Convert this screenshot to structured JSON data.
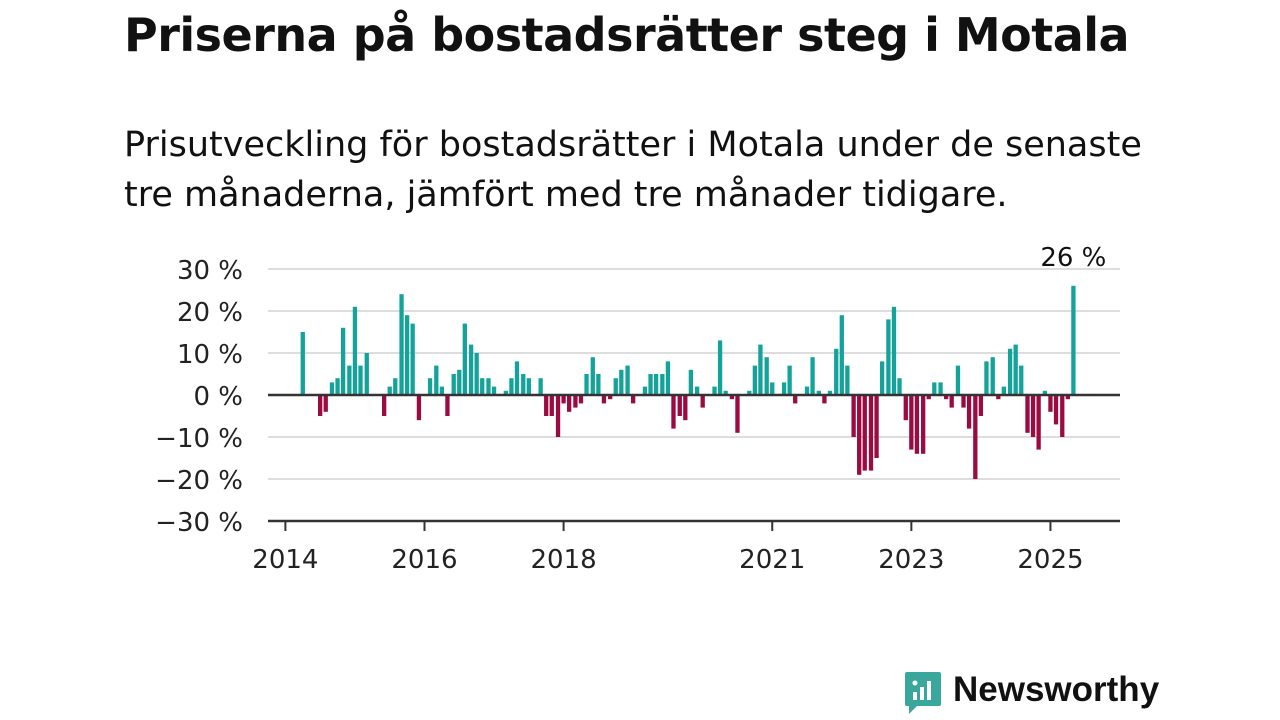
{
  "brand": {
    "name": "Newsworthy",
    "color": "#3aa79c"
  },
  "chart_data": {
    "type": "bar",
    "title": "Priserna på bostadsrätter steg i Motala",
    "subtitle": "Prisutveckling för bostadsrätter i Motala under de senaste tre månaderna, jämfört med tre månader tidigare.",
    "xlabel": "",
    "ylabel": "",
    "ylim": [
      -30,
      30
    ],
    "y_ticks": [
      30,
      20,
      10,
      0,
      -10,
      -20,
      -30
    ],
    "y_tick_labels": [
      "30 %",
      "20 %",
      "10 %",
      "0 %",
      "−10 %",
      "−20 %",
      "−30 %"
    ],
    "x_ticks": [
      2014,
      2016,
      2018,
      2021,
      2023,
      2025
    ],
    "x_tick_labels": [
      "2014",
      "2016",
      "2018",
      "2021",
      "2023",
      "2025"
    ],
    "x_range": [
      2013.75,
      2026.0
    ],
    "grid": true,
    "colors": {
      "positive": "#14a39a",
      "negative": "#9b0b42",
      "grid": "#dddddd",
      "axis": "#333333"
    },
    "annotation": {
      "x": 2025.33,
      "value": 26,
      "label": "26 %"
    },
    "x": [
      2014.25,
      2014.33,
      2014.42,
      2014.5,
      2014.58,
      2014.67,
      2014.75,
      2014.83,
      2014.92,
      2015.0,
      2015.08,
      2015.17,
      2015.25,
      2015.33,
      2015.42,
      2015.5,
      2015.58,
      2015.67,
      2015.75,
      2015.83,
      2015.92,
      2016.0,
      2016.08,
      2016.17,
      2016.25,
      2016.33,
      2016.42,
      2016.5,
      2016.58,
      2016.67,
      2016.75,
      2016.83,
      2016.92,
      2017.0,
      2017.08,
      2017.17,
      2017.25,
      2017.33,
      2017.42,
      2017.5,
      2017.58,
      2017.67,
      2017.75,
      2017.83,
      2017.92,
      2018.0,
      2018.08,
      2018.17,
      2018.25,
      2018.33,
      2018.42,
      2018.5,
      2018.58,
      2018.67,
      2018.75,
      2018.83,
      2018.92,
      2019.0,
      2019.08,
      2019.17,
      2019.25,
      2019.33,
      2019.42,
      2019.5,
      2019.58,
      2019.67,
      2019.75,
      2019.83,
      2019.92,
      2020.0,
      2020.08,
      2020.17,
      2020.25,
      2020.33,
      2020.42,
      2020.5,
      2020.58,
      2020.67,
      2020.75,
      2020.83,
      2020.92,
      2021.0,
      2021.08,
      2021.17,
      2021.25,
      2021.33,
      2021.42,
      2021.5,
      2021.58,
      2021.67,
      2021.75,
      2021.83,
      2021.92,
      2022.0,
      2022.08,
      2022.17,
      2022.25,
      2022.33,
      2022.42,
      2022.5,
      2022.58,
      2022.67,
      2022.75,
      2022.83,
      2022.92,
      2023.0,
      2023.08,
      2023.17,
      2023.25,
      2023.33,
      2023.42,
      2023.5,
      2023.58,
      2023.67,
      2023.75,
      2023.83,
      2023.92,
      2024.0,
      2024.08,
      2024.17,
      2024.25,
      2024.33,
      2024.42,
      2024.5,
      2024.58,
      2024.67,
      2024.75,
      2024.83,
      2024.92,
      2025.0,
      2025.08,
      2025.17,
      2025.25,
      2025.33
    ],
    "values": [
      15,
      0,
      0,
      -5,
      -4,
      3,
      4,
      16,
      7,
      21,
      7,
      10,
      0,
      0,
      -5,
      2,
      4,
      24,
      19,
      17,
      -6,
      0,
      4,
      7,
      2,
      -5,
      5,
      6,
      17,
      12,
      10,
      4,
      4,
      2,
      0,
      1,
      4,
      8,
      5,
      4,
      0,
      4,
      -5,
      -5,
      -10,
      -2,
      -4,
      -3,
      -2,
      5,
      9,
      5,
      -2,
      -1,
      4,
      6,
      7,
      -2,
      0,
      2,
      5,
      5,
      5,
      8,
      -8,
      -5,
      -6,
      6,
      2,
      -3,
      0,
      2,
      13,
      1,
      -1,
      -9,
      0,
      1,
      7,
      12,
      9,
      3,
      0,
      3,
      7,
      -2,
      0,
      2,
      9,
      1,
      -2,
      1,
      11,
      19,
      7,
      -10,
      -19,
      -18,
      -18,
      -15,
      8,
      18,
      21,
      4,
      -6,
      -13,
      -14,
      -14,
      -1,
      3,
      3,
      -1,
      -3,
      7,
      -3,
      -8,
      -20,
      -5,
      8,
      9,
      -1,
      2,
      11,
      12,
      7,
      -9,
      -10,
      -13,
      1,
      -4,
      -7,
      -10,
      -1,
      26
    ]
  }
}
